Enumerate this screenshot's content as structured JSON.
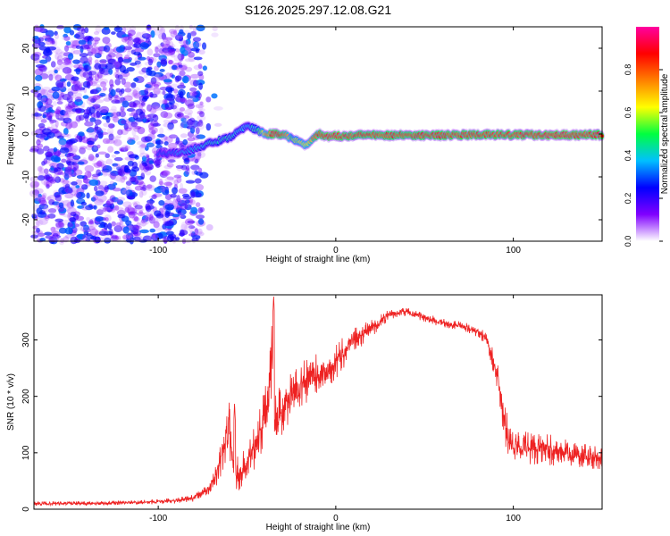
{
  "title": "S126.2025.297.12.08.G21",
  "chart_data": [
    {
      "type": "heatmap",
      "name": "spectrogram",
      "xlabel": "Height of straight line (km)",
      "ylabel": "Frequency (Hz)",
      "xlim": [
        -170,
        150
      ],
      "ylim": [
        -25,
        25
      ],
      "xticks": [
        -100,
        0,
        100
      ],
      "yticks": [
        -20,
        -10,
        0,
        10,
        20
      ],
      "colorbar": {
        "label": "Normalized spectral amplitude",
        "range": [
          0,
          1
        ],
        "ticks": [
          0.0,
          0.2,
          0.4,
          0.6,
          0.8
        ],
        "colors": [
          "#ffffff",
          "#8000ff",
          "#0000ff",
          "#00c0ff",
          "#00ff40",
          "#ffff00",
          "#ff8000",
          "#ff0000",
          "#ff00a0"
        ]
      },
      "noise_region_x": [
        -170,
        -75
      ],
      "ridge": {
        "x": [
          -100,
          -90,
          -80,
          -70,
          -60,
          -50,
          -45,
          -40,
          -35,
          -30,
          -25,
          -20,
          -17,
          -14,
          -10,
          -5,
          0,
          10,
          20,
          30,
          50,
          80,
          100,
          120,
          150
        ],
        "freq": [
          -4.5,
          -4.5,
          -3.5,
          -2,
          -1,
          2,
          1,
          0,
          0,
          0,
          -1,
          -2,
          -2.5,
          -1.5,
          0,
          -0.5,
          -0.5,
          -0.3,
          -0.2,
          -0.3,
          -0.3,
          -0.2,
          -0.2,
          -0.2,
          -0.2
        ],
        "amplitude": [
          0.3,
          0.35,
          0.4,
          0.45,
          0.45,
          0.4,
          0.45,
          0.7,
          0.95,
          0.9,
          0.6,
          0.65,
          0.7,
          0.75,
          0.9,
          0.95,
          0.95,
          0.9,
          0.92,
          0.9,
          0.92,
          0.92,
          0.92,
          0.95,
          0.92
        ]
      }
    },
    {
      "type": "line",
      "name": "snr",
      "xlabel": "Height of straight line (km)",
      "ylabel": "SNR (10 * v/v)",
      "xlim": [
        -170,
        150
      ],
      "ylim": [
        0,
        380
      ],
      "xticks": [
        -100,
        0,
        100
      ],
      "yticks": [
        0,
        100,
        200,
        300
      ],
      "color": "#ee2222",
      "series": {
        "x": [
          -170,
          -140,
          -110,
          -90,
          -80,
          -72,
          -67,
          -63,
          -60,
          -58,
          -55,
          -50,
          -45,
          -40,
          -36,
          -34,
          -30,
          -25,
          -20,
          -10,
          0,
          10,
          20,
          30,
          40,
          50,
          60,
          70,
          80,
          85,
          90,
          93,
          95,
          98,
          100,
          110,
          120,
          130,
          140,
          150
        ],
        "y": [
          10,
          10,
          12,
          15,
          20,
          35,
          60,
          110,
          145,
          85,
          60,
          80,
          120,
          160,
          270,
          160,
          180,
          200,
          220,
          240,
          260,
          300,
          320,
          345,
          350,
          340,
          330,
          325,
          315,
          300,
          250,
          200,
          150,
          120,
          110,
          110,
          105,
          100,
          95,
          90
        ],
        "noise": [
          5,
          5,
          5,
          6,
          8,
          15,
          30,
          50,
          60,
          45,
          40,
          45,
          55,
          70,
          90,
          70,
          60,
          55,
          55,
          45,
          40,
          30,
          20,
          12,
          10,
          10,
          10,
          10,
          12,
          15,
          30,
          45,
          50,
          40,
          35,
          40,
          35,
          30,
          28,
          25
        ],
        "peaks": [
          {
            "x": -35,
            "y": 380
          },
          {
            "x": -57,
            "y": 190
          }
        ]
      }
    }
  ]
}
